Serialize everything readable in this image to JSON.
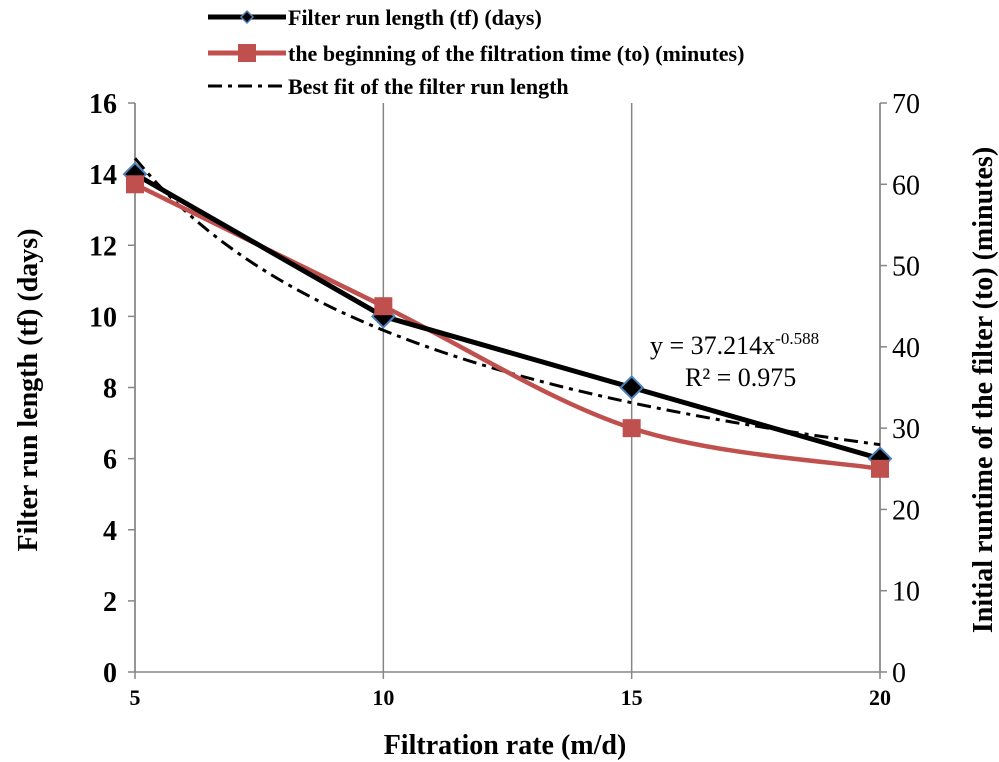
{
  "chart_data": {
    "type": "line",
    "xlabel": "Filtration rate (m/d)",
    "ylabel": "Filter run length (tf) (days)",
    "y2label": "Initial runtime of the filter (to) (minutes)",
    "x": [
      5,
      10,
      15,
      20
    ],
    "xlim": [
      5,
      20
    ],
    "ylim": [
      0,
      16
    ],
    "y2lim": [
      0,
      70
    ],
    "xticks": [
      "5",
      "10",
      "15",
      "20"
    ],
    "yticks": [
      "0",
      "2",
      "4",
      "6",
      "8",
      "10",
      "12",
      "14",
      "16"
    ],
    "y2ticks": [
      "0",
      "10",
      "20",
      "30",
      "40",
      "50",
      "60",
      "70"
    ],
    "grid": "vertical",
    "legend_position": "top",
    "series": [
      {
        "name": "Filter run length (tf) (days)",
        "axis": "left",
        "values": [
          14,
          10,
          8,
          6
        ],
        "color": "#000000",
        "marker": "diamond",
        "marker_fill": "#000000",
        "marker_edge": "#4f81bd",
        "line_style": "solid",
        "smooth": false
      },
      {
        "name": "the beginning of the filtration time (to) (minutes)",
        "axis": "right",
        "values": [
          60,
          45,
          30,
          25
        ],
        "color": "#c0504d",
        "marker": "square",
        "marker_fill": "#c0504d",
        "line_style": "solid",
        "smooth": true
      },
      {
        "name": "Best fit of the filter run length",
        "axis": "left",
        "trendline": "power",
        "coefficient": 37.214,
        "exponent": -0.588,
        "color": "#000000",
        "line_style": "dash-dot"
      }
    ],
    "annotations": {
      "equation_prefix": "y = 37.214x",
      "equation_exponent": "-0.588",
      "r_squared": "R² = 0.975"
    },
    "colors": {
      "grid": "#868686",
      "axis": "#868686",
      "marker_edge": "#4f81bd",
      "series2": "#c0504d"
    }
  }
}
